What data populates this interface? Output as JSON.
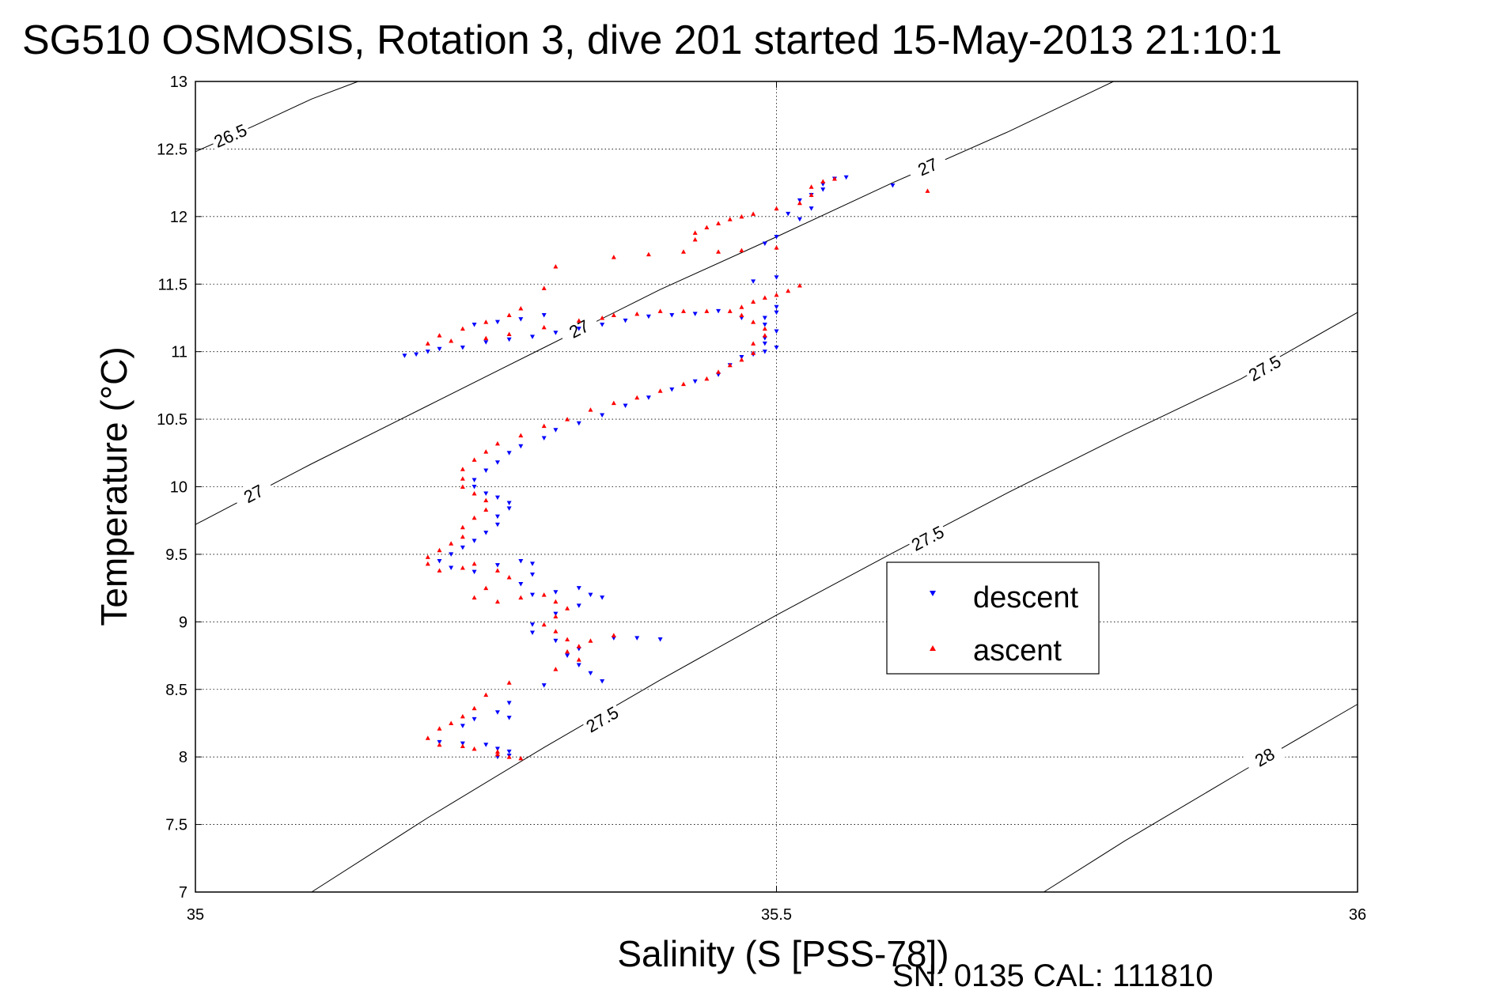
{
  "chart_data": {
    "type": "scatter",
    "title": "SG510 OSMOSIS, Rotation 3, dive 201 started 15-May-2013 21:10:1",
    "xlabel": "Salinity (S [PSS-78])",
    "ylabel": "Temperature (°C)",
    "xlim": [
      35,
      36
    ],
    "ylim": [
      7,
      13
    ],
    "xticks": [
      35,
      35.5,
      36
    ],
    "xtick_labels": [
      "35",
      "35.5",
      "36"
    ],
    "yticks": [
      7,
      7.5,
      8,
      8.5,
      9,
      9.5,
      10,
      10.5,
      11,
      11.5,
      12,
      12.5,
      13
    ],
    "ytick_labels": [
      "7",
      "7.5",
      "8",
      "8.5",
      "9",
      "9.5",
      "10",
      "10.5",
      "11",
      "11.5",
      "12",
      "12.5",
      "13"
    ],
    "grid": true,
    "legend_position": "center-right",
    "density_contours": [
      {
        "level": "26.5",
        "points": [
          [
            35.0,
            12.48
          ],
          [
            35.05,
            12.67
          ],
          [
            35.1,
            12.87
          ],
          [
            35.14,
            13.0
          ]
        ],
        "labels": [
          {
            "x": 35.03,
            "y": 12.6
          }
        ]
      },
      {
        "level": "27",
        "points": [
          [
            35.0,
            9.72
          ],
          [
            35.1,
            10.17
          ],
          [
            35.2,
            10.6
          ],
          [
            35.3,
            11.03
          ],
          [
            35.4,
            11.46
          ],
          [
            35.5,
            11.85
          ],
          [
            35.6,
            12.25
          ],
          [
            35.7,
            12.63
          ],
          [
            35.79,
            13.0
          ]
        ],
        "labels": [
          {
            "x": 35.05,
            "y": 9.95
          },
          {
            "x": 35.33,
            "y": 11.17
          },
          {
            "x": 35.63,
            "y": 12.37
          }
        ]
      },
      {
        "level": "27.5",
        "points": [
          [
            35.1,
            7.0
          ],
          [
            35.2,
            7.55
          ],
          [
            35.3,
            8.07
          ],
          [
            35.4,
            8.57
          ],
          [
            35.5,
            9.05
          ],
          [
            35.6,
            9.51
          ],
          [
            35.7,
            9.96
          ],
          [
            35.8,
            10.39
          ],
          [
            35.9,
            10.8
          ],
          [
            36.0,
            11.29
          ]
        ],
        "labels": [
          {
            "x": 35.35,
            "y": 8.28
          },
          {
            "x": 35.63,
            "y": 9.62
          },
          {
            "x": 35.92,
            "y": 10.88
          }
        ]
      },
      {
        "level": "28",
        "points": [
          [
            35.73,
            7.0
          ],
          [
            35.8,
            7.38
          ],
          [
            35.9,
            7.89
          ],
          [
            36.0,
            8.39
          ]
        ],
        "labels": [
          {
            "x": 35.92,
            "y": 8.0
          }
        ]
      }
    ],
    "series": [
      {
        "name": "descent",
        "color": "#0000ff",
        "marker": "triangle-down",
        "points": [
          [
            35.56,
            12.29
          ],
          [
            35.55,
            12.28
          ],
          [
            35.54,
            12.24
          ],
          [
            35.54,
            12.2
          ],
          [
            35.53,
            12.16
          ],
          [
            35.52,
            12.12
          ],
          [
            35.53,
            12.06
          ],
          [
            35.51,
            12.02
          ],
          [
            35.52,
            11.98
          ],
          [
            35.6,
            12.23
          ],
          [
            35.5,
            11.85
          ],
          [
            35.49,
            11.8
          ],
          [
            35.5,
            11.55
          ],
          [
            35.48,
            11.52
          ],
          [
            35.5,
            11.33
          ],
          [
            35.5,
            11.29
          ],
          [
            35.49,
            11.25
          ],
          [
            35.49,
            11.2
          ],
          [
            35.5,
            11.15
          ],
          [
            35.49,
            11.1
          ],
          [
            35.49,
            11.06
          ],
          [
            35.5,
            11.03
          ],
          [
            35.49,
            11.0
          ],
          [
            35.48,
            10.98
          ],
          [
            35.47,
            11.25
          ],
          [
            35.45,
            11.3
          ],
          [
            35.43,
            11.28
          ],
          [
            35.41,
            11.27
          ],
          [
            35.39,
            11.26
          ],
          [
            35.37,
            11.23
          ],
          [
            35.35,
            11.2
          ],
          [
            35.33,
            11.17
          ],
          [
            35.31,
            11.14
          ],
          [
            35.29,
            11.11
          ],
          [
            35.27,
            11.09
          ],
          [
            35.25,
            11.07
          ],
          [
            35.23,
            11.03
          ],
          [
            35.21,
            11.02
          ],
          [
            35.2,
            11.0
          ],
          [
            35.19,
            10.98
          ],
          [
            35.18,
            10.97
          ],
          [
            35.24,
            11.2
          ],
          [
            35.26,
            11.22
          ],
          [
            35.28,
            11.24
          ],
          [
            35.3,
            11.27
          ],
          [
            35.47,
            10.96
          ],
          [
            35.46,
            10.9
          ],
          [
            35.45,
            10.83
          ],
          [
            35.43,
            10.78
          ],
          [
            35.41,
            10.72
          ],
          [
            35.39,
            10.66
          ],
          [
            35.37,
            10.6
          ],
          [
            35.35,
            10.53
          ],
          [
            35.33,
            10.47
          ],
          [
            35.31,
            10.42
          ],
          [
            35.3,
            10.36
          ],
          [
            35.28,
            10.3
          ],
          [
            35.27,
            10.25
          ],
          [
            35.26,
            10.18
          ],
          [
            35.25,
            10.12
          ],
          [
            35.24,
            10.05
          ],
          [
            35.24,
            10.0
          ],
          [
            35.25,
            9.95
          ],
          [
            35.26,
            9.92
          ],
          [
            35.27,
            9.88
          ],
          [
            35.27,
            9.84
          ],
          [
            35.26,
            9.78
          ],
          [
            35.26,
            9.72
          ],
          [
            35.25,
            9.66
          ],
          [
            35.24,
            9.6
          ],
          [
            35.23,
            9.55
          ],
          [
            35.22,
            9.5
          ],
          [
            35.21,
            9.45
          ],
          [
            35.22,
            9.4
          ],
          [
            35.24,
            9.37
          ],
          [
            35.26,
            9.42
          ],
          [
            35.28,
            9.45
          ],
          [
            35.29,
            9.43
          ],
          [
            35.29,
            9.35
          ],
          [
            35.28,
            9.28
          ],
          [
            35.29,
            9.2
          ],
          [
            35.31,
            9.22
          ],
          [
            35.33,
            9.25
          ],
          [
            35.34,
            9.2
          ],
          [
            35.35,
            9.18
          ],
          [
            35.33,
            9.12
          ],
          [
            35.31,
            9.06
          ],
          [
            35.29,
            8.98
          ],
          [
            35.29,
            8.92
          ],
          [
            35.31,
            8.86
          ],
          [
            35.33,
            8.8
          ],
          [
            35.36,
            8.88
          ],
          [
            35.38,
            8.88
          ],
          [
            35.4,
            8.87
          ],
          [
            35.32,
            8.75
          ],
          [
            35.33,
            8.68
          ],
          [
            35.34,
            8.62
          ],
          [
            35.35,
            8.56
          ],
          [
            35.3,
            8.53
          ],
          [
            35.27,
            8.4
          ],
          [
            35.26,
            8.33
          ],
          [
            35.27,
            8.29
          ],
          [
            35.24,
            8.28
          ],
          [
            35.23,
            8.23
          ],
          [
            35.21,
            8.11
          ],
          [
            35.23,
            8.1
          ],
          [
            35.25,
            8.09
          ],
          [
            35.26,
            8.06
          ],
          [
            35.27,
            8.04
          ],
          [
            35.27,
            8.01
          ],
          [
            35.26,
            8.0
          ]
        ]
      },
      {
        "name": "ascent",
        "color": "#ff0000",
        "marker": "triangle-up",
        "points": [
          [
            35.55,
            12.28
          ],
          [
            35.54,
            12.26
          ],
          [
            35.53,
            12.22
          ],
          [
            35.53,
            12.16
          ],
          [
            35.52,
            12.1
          ],
          [
            35.5,
            12.06
          ],
          [
            35.48,
            12.02
          ],
          [
            35.47,
            12.0
          ],
          [
            35.46,
            11.98
          ],
          [
            35.45,
            11.95
          ],
          [
            35.44,
            11.92
          ],
          [
            35.43,
            11.88
          ],
          [
            35.43,
            11.83
          ],
          [
            35.63,
            12.19
          ],
          [
            35.5,
            11.77
          ],
          [
            35.47,
            11.75
          ],
          [
            35.45,
            11.74
          ],
          [
            35.42,
            11.74
          ],
          [
            35.39,
            11.72
          ],
          [
            35.36,
            11.7
          ],
          [
            35.31,
            11.63
          ],
          [
            35.3,
            11.47
          ],
          [
            35.52,
            11.49
          ],
          [
            35.51,
            11.45
          ],
          [
            35.5,
            11.42
          ],
          [
            35.49,
            11.4
          ],
          [
            35.48,
            11.37
          ],
          [
            35.47,
            11.33
          ],
          [
            35.47,
            11.27
          ],
          [
            35.48,
            11.22
          ],
          [
            35.49,
            11.17
          ],
          [
            35.49,
            11.12
          ],
          [
            35.48,
            11.06
          ],
          [
            35.48,
            10.99
          ],
          [
            35.47,
            10.94
          ],
          [
            35.46,
            10.9
          ],
          [
            35.46,
            11.3
          ],
          [
            35.44,
            11.3
          ],
          [
            35.42,
            11.3
          ],
          [
            35.4,
            11.3
          ],
          [
            35.38,
            11.28
          ],
          [
            35.36,
            11.27
          ],
          [
            35.35,
            11.25
          ],
          [
            35.33,
            11.23
          ],
          [
            35.3,
            11.18
          ],
          [
            35.27,
            11.13
          ],
          [
            35.25,
            11.1
          ],
          [
            35.22,
            11.08
          ],
          [
            35.2,
            11.06
          ],
          [
            35.21,
            11.12
          ],
          [
            35.23,
            11.17
          ],
          [
            35.25,
            11.22
          ],
          [
            35.27,
            11.27
          ],
          [
            35.28,
            11.32
          ],
          [
            35.45,
            10.85
          ],
          [
            35.44,
            10.8
          ],
          [
            35.42,
            10.76
          ],
          [
            35.4,
            10.71
          ],
          [
            35.38,
            10.66
          ],
          [
            35.36,
            10.62
          ],
          [
            35.34,
            10.57
          ],
          [
            35.32,
            10.5
          ],
          [
            35.3,
            10.45
          ],
          [
            35.28,
            10.38
          ],
          [
            35.26,
            10.32
          ],
          [
            35.25,
            10.26
          ],
          [
            35.24,
            10.2
          ],
          [
            35.23,
            10.13
          ],
          [
            35.23,
            10.06
          ],
          [
            35.23,
            10.0
          ],
          [
            35.24,
            9.95
          ],
          [
            35.25,
            9.9
          ],
          [
            35.25,
            9.83
          ],
          [
            35.24,
            9.77
          ],
          [
            35.23,
            9.7
          ],
          [
            35.23,
            9.63
          ],
          [
            35.22,
            9.58
          ],
          [
            35.21,
            9.53
          ],
          [
            35.2,
            9.48
          ],
          [
            35.2,
            9.43
          ],
          [
            35.21,
            9.38
          ],
          [
            35.23,
            9.4
          ],
          [
            35.24,
            9.43
          ],
          [
            35.26,
            9.38
          ],
          [
            35.27,
            9.33
          ],
          [
            35.25,
            9.25
          ],
          [
            35.24,
            9.18
          ],
          [
            35.26,
            9.15
          ],
          [
            35.28,
            9.18
          ],
          [
            35.3,
            9.2
          ],
          [
            35.31,
            9.15
          ],
          [
            35.32,
            9.1
          ],
          [
            35.31,
            9.04
          ],
          [
            35.3,
            8.98
          ],
          [
            35.31,
            8.93
          ],
          [
            35.32,
            8.87
          ],
          [
            35.33,
            8.82
          ],
          [
            35.34,
            8.86
          ],
          [
            35.36,
            8.9
          ],
          [
            35.32,
            8.78
          ],
          [
            35.33,
            8.72
          ],
          [
            35.31,
            8.65
          ],
          [
            35.27,
            8.55
          ],
          [
            35.25,
            8.46
          ],
          [
            35.24,
            8.36
          ],
          [
            35.23,
            8.3
          ],
          [
            35.22,
            8.25
          ],
          [
            35.21,
            8.21
          ],
          [
            35.2,
            8.14
          ],
          [
            35.21,
            8.09
          ],
          [
            35.23,
            8.08
          ],
          [
            35.24,
            8.06
          ],
          [
            35.26,
            8.04
          ],
          [
            35.26,
            8.02
          ],
          [
            35.27,
            8.0
          ],
          [
            35.28,
            7.99
          ]
        ]
      }
    ]
  },
  "footer": {
    "serial": "SN: 0135  CAL: 111810"
  }
}
